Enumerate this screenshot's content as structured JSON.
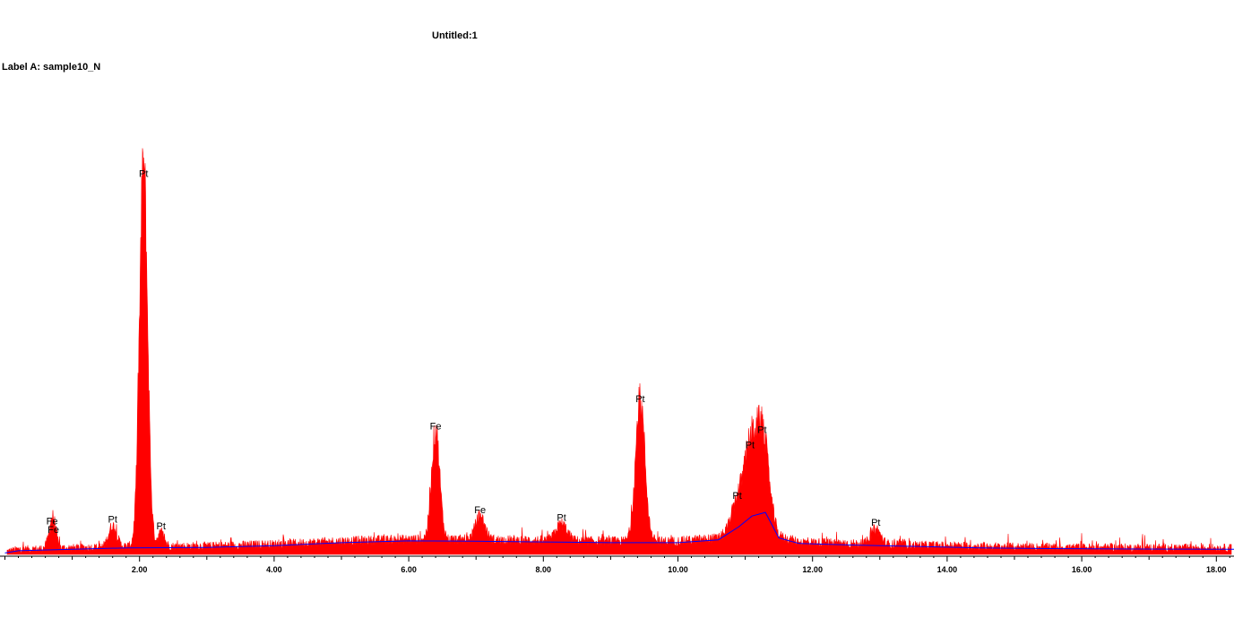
{
  "header": {
    "title": "Untitled:1",
    "label_a": "Label A: sample10_N"
  },
  "colors": {
    "spectrum": "#ff0000",
    "background_fit": "#0000ff",
    "axis": "#000000"
  },
  "chart_data": {
    "type": "area",
    "title": "Untitled:1",
    "xlabel": "",
    "ylabel": "",
    "xlim": [
      0,
      18.3
    ],
    "ylim": [
      0,
      100
    ],
    "x_ticks": [
      2,
      4,
      6,
      8,
      10,
      12,
      14,
      16,
      18
    ],
    "x_tick_labels": [
      "2.00",
      "4.00",
      "6.00",
      "8.00",
      "10.00",
      "12.00",
      "14.00",
      "16.00",
      "18.00"
    ],
    "x_minor_step": 0.2,
    "grid": false,
    "peaks": [
      {
        "label": "Fe",
        "energy": 0.7,
        "height": 5.5,
        "width": 0.05
      },
      {
        "label": "Fe",
        "energy": 0.72,
        "height": 3.2,
        "width": 0.04
      },
      {
        "label": "Pt",
        "energy": 1.6,
        "height": 5.5,
        "width": 0.06
      },
      {
        "label": "Pt",
        "energy": 2.06,
        "height": 100,
        "width": 0.06
      },
      {
        "label": "Pt",
        "energy": 2.32,
        "height": 3.5,
        "width": 0.05
      },
      {
        "label": "Fe",
        "energy": 6.4,
        "height": 29,
        "width": 0.06
      },
      {
        "label": "Fe",
        "energy": 7.06,
        "height": 6.2,
        "width": 0.07
      },
      {
        "label": "Pt",
        "energy": 8.27,
        "height": 4.4,
        "width": 0.08
      },
      {
        "label": "Pt",
        "energy": 9.44,
        "height": 37,
        "width": 0.07
      },
      {
        "label": "Pt",
        "energy": 11.07,
        "height": 17.5,
        "width": 0.09
      },
      {
        "label": "Pt",
        "energy": 11.25,
        "height": 20.5,
        "width": 0.09
      },
      {
        "label": "Pt",
        "energy": 10.88,
        "height": 6.5,
        "width": 0.08
      },
      {
        "label": "Pt",
        "energy": 12.94,
        "height": 4.0,
        "width": 0.07
      }
    ],
    "background": {
      "x": [
        0,
        0.2,
        1.8,
        3.0,
        4.0,
        5.0,
        6.0,
        7.0,
        8.0,
        9.0,
        10.0,
        10.6,
        10.9,
        11.1,
        11.3,
        11.5,
        11.8,
        12.5,
        13.5,
        14.5,
        15.5,
        16.5,
        18.3
      ],
      "y": [
        0.4,
        1.0,
        1.8,
        1.9,
        2.4,
        3.2,
        3.7,
        3.6,
        3.4,
        3.2,
        3.2,
        4.0,
        7.5,
        10.5,
        11.5,
        4.5,
        3.0,
        2.6,
        2.2,
        1.8,
        1.6,
        1.5,
        1.4
      ]
    }
  }
}
